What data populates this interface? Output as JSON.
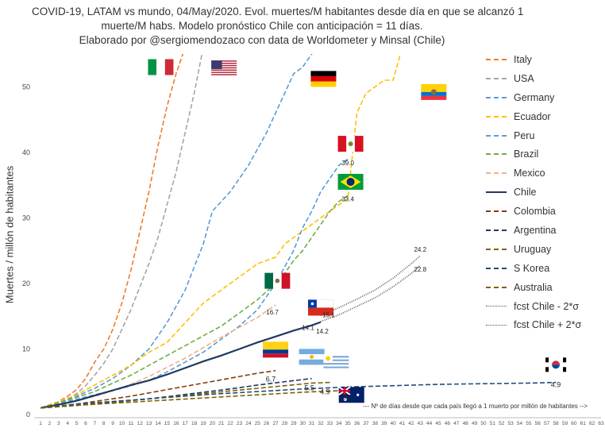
{
  "title_lines": [
    "COVID-19, LATAM vs mundo, 04/May/2020. Evol. muertes/M habitantes desde día en que se alcanzó 1",
    "muerte/M habs. Modelo pronóstico Chile con anticipación = 11 días.",
    "Elaborado por @sergiomendozaco con data de Worldometer y Minsal (Chile)"
  ],
  "chart_data": {
    "type": "line",
    "title": "COVID-19, LATAM vs mundo, 04/May/2020. Evol. muertes/M habitantes desde día en que se alcanzó 1 muerte/M habs. Modelo pronóstico Chile con anticipación = 11 días.",
    "ylabel": "Muertes / millón de habitantes",
    "xlabel": "--- Nº de días desde que cada país llegó a 1 muerto por millón de habitantes -->",
    "ylim": [
      0,
      55
    ],
    "xlim": [
      1,
      63
    ],
    "yticks": [
      0,
      10,
      20,
      30,
      40,
      50
    ],
    "x_ticks": [
      1,
      2,
      3,
      4,
      5,
      6,
      7,
      8,
      9,
      10,
      11,
      12,
      13,
      14,
      15,
      16,
      17,
      18,
      19,
      20,
      21,
      22,
      23,
      24,
      25,
      26,
      27,
      28,
      29,
      30,
      31,
      32,
      33,
      34,
      35,
      36,
      37,
      38,
      39,
      40,
      41,
      42,
      43,
      44,
      45,
      46,
      47,
      48,
      49,
      50,
      51,
      52,
      53,
      54,
      55,
      56,
      57,
      58,
      59,
      60,
      61,
      62,
      63
    ],
    "series": [
      {
        "name": "Italy",
        "color": "#ED7D31",
        "dash": "6,3",
        "x": [
          1,
          2,
          3,
          4,
          5,
          6,
          7,
          8,
          9,
          10,
          11,
          12,
          13,
          14,
          15,
          16,
          17
        ],
        "y": [
          1,
          1.4,
          2,
          2.8,
          3.8,
          5.5,
          8,
          10,
          13,
          17,
          22,
          28,
          34,
          41,
          47,
          52,
          56
        ]
      },
      {
        "name": "USA",
        "color": "#A5A5A5",
        "dash": "6,3",
        "x": [
          1,
          2,
          3,
          4,
          5,
          6,
          7,
          8,
          9,
          10,
          11,
          12,
          13,
          14,
          15,
          16,
          17,
          18,
          19
        ],
        "y": [
          1,
          1.3,
          1.8,
          2.4,
          3.2,
          4.4,
          6,
          7.8,
          10,
          13,
          16,
          19.5,
          23,
          27,
          32,
          37,
          43,
          49,
          56
        ]
      },
      {
        "name": "Germany",
        "color": "#5B9BD5",
        "dash": "6,3",
        "x": [
          1,
          3,
          5,
          7,
          9,
          11,
          13,
          15,
          17,
          19,
          20,
          22,
          24,
          26,
          28,
          29,
          30,
          31,
          32
        ],
        "y": [
          1,
          1.8,
          2.8,
          4,
          5.5,
          7.5,
          10,
          14,
          19,
          26,
          31,
          34,
          38,
          43,
          49,
          52,
          53,
          55,
          56
        ]
      },
      {
        "name": "Ecuador",
        "color": "#FFC000",
        "dash": "6,3",
        "x": [
          1,
          3,
          5,
          7,
          9,
          11,
          13,
          15,
          17,
          19,
          21,
          23,
          25,
          27,
          28,
          29,
          30,
          31,
          32,
          33,
          34,
          35,
          36,
          37,
          38,
          39,
          40,
          41,
          42
        ],
        "y": [
          1,
          2,
          3,
          4.5,
          6,
          7.5,
          9.5,
          11,
          14,
          17,
          19,
          21,
          23,
          24,
          26,
          27,
          28,
          29,
          30,
          31,
          32,
          33,
          46,
          49,
          50,
          51,
          51,
          56,
          56
        ]
      },
      {
        "name": "Peru",
        "color": "#5B9BD5",
        "dash": "6,3",
        "x": [
          1,
          4,
          7,
          10,
          13,
          15,
          17,
          19,
          21,
          23,
          25,
          26,
          27,
          28,
          29,
          30,
          31,
          32,
          33,
          34,
          35
        ],
        "y": [
          1,
          2,
          3,
          4,
          5.2,
          6.5,
          8,
          9.5,
          11.5,
          13.5,
          16,
          18,
          20,
          22.5,
          25,
          28.5,
          31,
          34,
          36,
          38,
          39
        ]
      },
      {
        "name": "Brazil",
        "color": "#70AD47",
        "dash": "6,3",
        "x": [
          1,
          3,
          5,
          7,
          9,
          11,
          13,
          15,
          17,
          19,
          21,
          23,
          25,
          27,
          28,
          29,
          30,
          31,
          32,
          33,
          34,
          35
        ],
        "y": [
          1,
          1.8,
          2.6,
          3.5,
          4.8,
          6,
          7.5,
          9,
          10.5,
          12,
          13.5,
          15.5,
          17.5,
          20,
          21.5,
          23.5,
          25,
          27,
          29,
          31,
          32.5,
          33.4
        ]
      },
      {
        "name": "Mexico",
        "color": "#F4B183",
        "dash": "6,3",
        "x": [
          1,
          3,
          5,
          7,
          9,
          11,
          13,
          15,
          17,
          19,
          21,
          23,
          25,
          26,
          27
        ],
        "y": [
          1,
          1.5,
          2.1,
          2.8,
          3.6,
          4.6,
          5.8,
          7.2,
          8.6,
          10.2,
          11.8,
          13.3,
          14.8,
          15.8,
          16.7
        ]
      },
      {
        "name": "Chile",
        "color": "#1F3864",
        "dash": "",
        "x": [
          1,
          3,
          5,
          7,
          9,
          11,
          13,
          15,
          17,
          19,
          21,
          23,
          25,
          27,
          29,
          31,
          32
        ],
        "y": [
          1,
          1.5,
          2.1,
          2.9,
          3.7,
          4.5,
          5.2,
          6.1,
          7.1,
          8.1,
          9,
          10,
          11,
          11.9,
          12.8,
          13.6,
          14.1
        ]
      },
      {
        "name": "Colombia",
        "color": "#843C0C",
        "dash": "6,3",
        "x": [
          1,
          3,
          5,
          7,
          9,
          11,
          13,
          15,
          17,
          19,
          21,
          23,
          25,
          27
        ],
        "y": [
          1,
          1.3,
          1.6,
          2,
          2.4,
          2.8,
          3.3,
          3.8,
          4.3,
          4.8,
          5.3,
          5.8,
          6.3,
          6.7
        ]
      },
      {
        "name": "Argentina",
        "color": "#203864",
        "dash": "6,3",
        "x": [
          1,
          4,
          7,
          10,
          13,
          16,
          19,
          22,
          25,
          28,
          31
        ],
        "y": [
          1,
          1.3,
          1.6,
          2,
          2.4,
          2.9,
          3.4,
          3.9,
          4.5,
          5,
          5.5
        ]
      },
      {
        "name": "Uruguay",
        "color": "#7F6000",
        "dash": "6,3",
        "x": [
          1,
          4,
          7,
          10,
          13,
          16,
          19,
          22,
          25,
          28,
          31,
          33
        ],
        "y": [
          1,
          1.3,
          1.6,
          2,
          2.4,
          2.8,
          3.2,
          3.6,
          4,
          4.4,
          4.8,
          4.9
        ]
      },
      {
        "name": "S Korea",
        "color": "#1F4E79",
        "dash": "6,3",
        "x": [
          1,
          5,
          10,
          15,
          20,
          25,
          30,
          35,
          40,
          45,
          50,
          55,
          58
        ],
        "y": [
          1,
          1.6,
          2.1,
          2.6,
          3.1,
          3.5,
          3.9,
          4.2,
          4.4,
          4.6,
          4.7,
          4.8,
          4.9
        ]
      },
      {
        "name": "Australia",
        "color": "#806000",
        "dash": "6,3",
        "x": [
          1,
          5,
          10,
          15,
          20,
          25,
          30,
          35
        ],
        "y": [
          1,
          1.4,
          1.8,
          2.2,
          2.6,
          3,
          3.4,
          3.7
        ]
      },
      {
        "name": "fcst Chile - 2*σ",
        "color": "#555555",
        "dash": "1,1.5",
        "x": [
          32,
          34,
          36,
          38,
          40,
          42,
          43
        ],
        "y": [
          14.2,
          15.2,
          16.5,
          17.8,
          19.5,
          21.5,
          22.8
        ]
      },
      {
        "name": "fcst Chile + 2*σ",
        "color": "#555555",
        "dash": "1,1.5",
        "x": [
          32,
          34,
          36,
          38,
          40,
          42,
          43
        ],
        "y": [
          15.1,
          16.3,
          17.6,
          19,
          20.8,
          23,
          24.2
        ]
      }
    ],
    "annotations": [
      {
        "text": "39.0",
        "x": 35,
        "y": 39.0
      },
      {
        "text": "33.4",
        "x": 35,
        "y": 33.4
      },
      {
        "text": "16.7",
        "x": 27,
        "y": 16.7
      },
      {
        "text": "15.1",
        "x": 32,
        "y": 15.1
      },
      {
        "text": "14.1",
        "x": 32,
        "y": 14.1
      },
      {
        "text": "14.2",
        "x": 32,
        "y": 14.2
      },
      {
        "text": "24.2",
        "x": 43,
        "y": 24.2
      },
      {
        "text": "22.8",
        "x": 43,
        "y": 22.8
      },
      {
        "text": "6.7",
        "x": 27,
        "y": 6.7
      },
      {
        "text": "5.5",
        "x": 31,
        "y": 5.5
      },
      {
        "text": "4.9",
        "x": 33,
        "y": 4.9
      },
      {
        "text": "4.9",
        "x": 58,
        "y": 4.9
      },
      {
        "text": "3.7",
        "x": 35,
        "y": 3.7
      }
    ],
    "flags": [
      {
        "country": "Italy",
        "x": 14.3,
        "y": 53.0
      },
      {
        "country": "USA",
        "x": 21.3,
        "y": 52.8
      },
      {
        "country": "Germany",
        "x": 32.3,
        "y": 51.2
      },
      {
        "country": "Ecuador",
        "x": 44.5,
        "y": 49.2
      },
      {
        "country": "Peru",
        "x": 35.3,
        "y": 41.3
      },
      {
        "country": "Brazil",
        "x": 35.3,
        "y": 35.5
      },
      {
        "country": "Mexico",
        "x": 27.2,
        "y": 20.4
      },
      {
        "country": "Chile",
        "x": 32.0,
        "y": 16.3
      },
      {
        "country": "Colombia",
        "x": 27.0,
        "y": 9.9
      },
      {
        "country": "Argentina",
        "x": 31.0,
        "y": 8.8
      },
      {
        "country": "Uruguay",
        "x": 33.7,
        "y": 8.0
      },
      {
        "country": "S Korea",
        "x": 58.0,
        "y": 7.6
      },
      {
        "country": "Australia",
        "x": 35.4,
        "y": 3.0
      }
    ]
  },
  "legend": {
    "items": [
      {
        "label": "Italy",
        "color": "#ED7D31",
        "style": "dashed"
      },
      {
        "label": "USA",
        "color": "#A5A5A5",
        "style": "dashed"
      },
      {
        "label": "Germany",
        "color": "#5B9BD5",
        "style": "dashed"
      },
      {
        "label": "Ecuador",
        "color": "#FFC000",
        "style": "dashed"
      },
      {
        "label": "Peru",
        "color": "#5B9BD5",
        "style": "dashed"
      },
      {
        "label": "Brazil",
        "color": "#70AD47",
        "style": "dashed"
      },
      {
        "label": "Mexico",
        "color": "#F4B183",
        "style": "dashed"
      },
      {
        "label": "Chile",
        "color": "#1F3864",
        "style": "solid"
      },
      {
        "label": "Colombia",
        "color": "#843C0C",
        "style": "dashed"
      },
      {
        "label": "Argentina",
        "color": "#203864",
        "style": "dashed"
      },
      {
        "label": "Uruguay",
        "color": "#7F6000",
        "style": "dashed"
      },
      {
        "label": "S Korea",
        "color": "#1F4E79",
        "style": "dashed"
      },
      {
        "label": "Australia",
        "color": "#806000",
        "style": "dashed"
      },
      {
        "label": "fcst Chile - 2*σ",
        "color": "#555555",
        "style": "dotted"
      },
      {
        "label": "fcst Chile + 2*σ",
        "color": "#555555",
        "style": "dotted"
      }
    ]
  }
}
